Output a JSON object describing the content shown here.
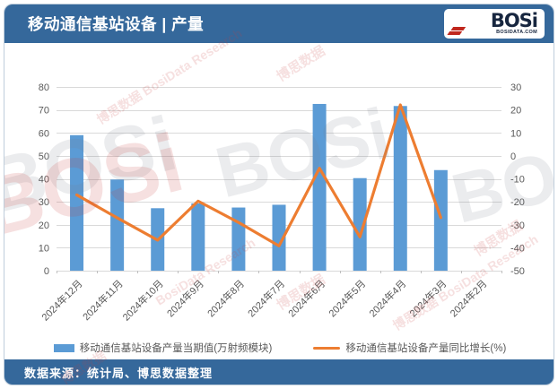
{
  "header": {
    "title": "移动通信基站设备 | 产量",
    "logo": {
      "text": "BOSi",
      "subtext": "BOSIDATA.COM"
    }
  },
  "footer": {
    "source": "数据来源：统计局、博思数据整理"
  },
  "watermark": {
    "brand": "BOSi",
    "cn": "博思数据",
    "en": "BosiData Research"
  },
  "chart_data": {
    "type": "bar",
    "subtype": "bar-line combo, dual axis",
    "categories": [
      "2024年12月",
      "2024年11月",
      "2024年10月",
      "2024年9月",
      "2024年8月",
      "2024年7月",
      "2024年6月",
      "2024年5月",
      "2024年4月",
      "2024年3月",
      "2024年2月"
    ],
    "series": [
      {
        "name": "移动通信基站设备产量当期值(万射频模块)",
        "type": "bar",
        "axis": "left",
        "color": "#5B9BD5",
        "values": [
          59,
          39.7,
          27.2,
          29.3,
          27.5,
          28.7,
          72.6,
          40.3,
          71.7,
          43.8,
          null
        ]
      },
      {
        "name": "移动通信基站设备产量同比增长(%)",
        "type": "line",
        "axis": "right",
        "color": "#ED7D31",
        "values": [
          -17,
          -27,
          -36.7,
          -19.7,
          -29,
          -39.2,
          -5.4,
          -35.3,
          22.2,
          -26.9,
          null
        ]
      }
    ],
    "left_axis": {
      "min": 0,
      "max": 80,
      "step": 10,
      "ticks": [
        80,
        70,
        60,
        50,
        40,
        30,
        20,
        10,
        0
      ]
    },
    "right_axis": {
      "min": -50,
      "max": 30,
      "step": 10,
      "ticks": [
        30,
        20,
        10,
        0,
        -10,
        -20,
        -30,
        -40,
        -50
      ]
    },
    "grid": true,
    "legend_position": "bottom",
    "title": "移动通信基站设备 | 产量"
  }
}
